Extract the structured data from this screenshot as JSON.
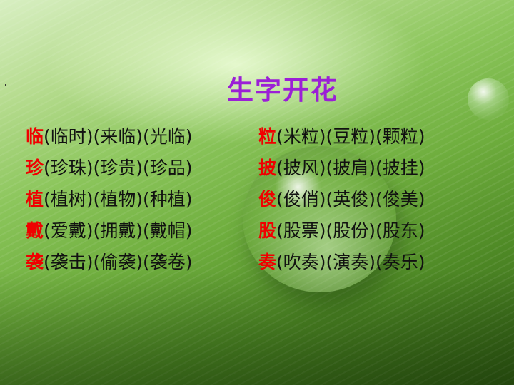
{
  "title": "生字开花",
  "colors": {
    "title": "#9b1fd6",
    "highlight": "#f00000",
    "text": "#111111"
  },
  "left_column": [
    {
      "char": "临",
      "words": "(临时)(来临)(光临)"
    },
    {
      "char": "珍",
      "words": "(珍珠)(珍贵)(珍品)"
    },
    {
      "char": "植",
      "words": "(植树)(植物)(种植)"
    },
    {
      "char": "戴",
      "words": "(爱戴)(拥戴)(戴帽)"
    },
    {
      "char": "袭",
      "words": "(袭击)(偷袭)(袭卷)"
    }
  ],
  "right_column": [
    {
      "char": "粒",
      "words": "(米粒)(豆粒)(颗粒)"
    },
    {
      "char": "披",
      "words": "(披风)(披肩)(披挂)"
    },
    {
      "char": "俊",
      "words": "(俊俏)(英俊)(俊美)"
    },
    {
      "char": "股",
      "words": "(股票)(股份)(股东)"
    },
    {
      "char": "奏",
      "words": "(吹奏)(演奏)(奏乐)"
    }
  ]
}
